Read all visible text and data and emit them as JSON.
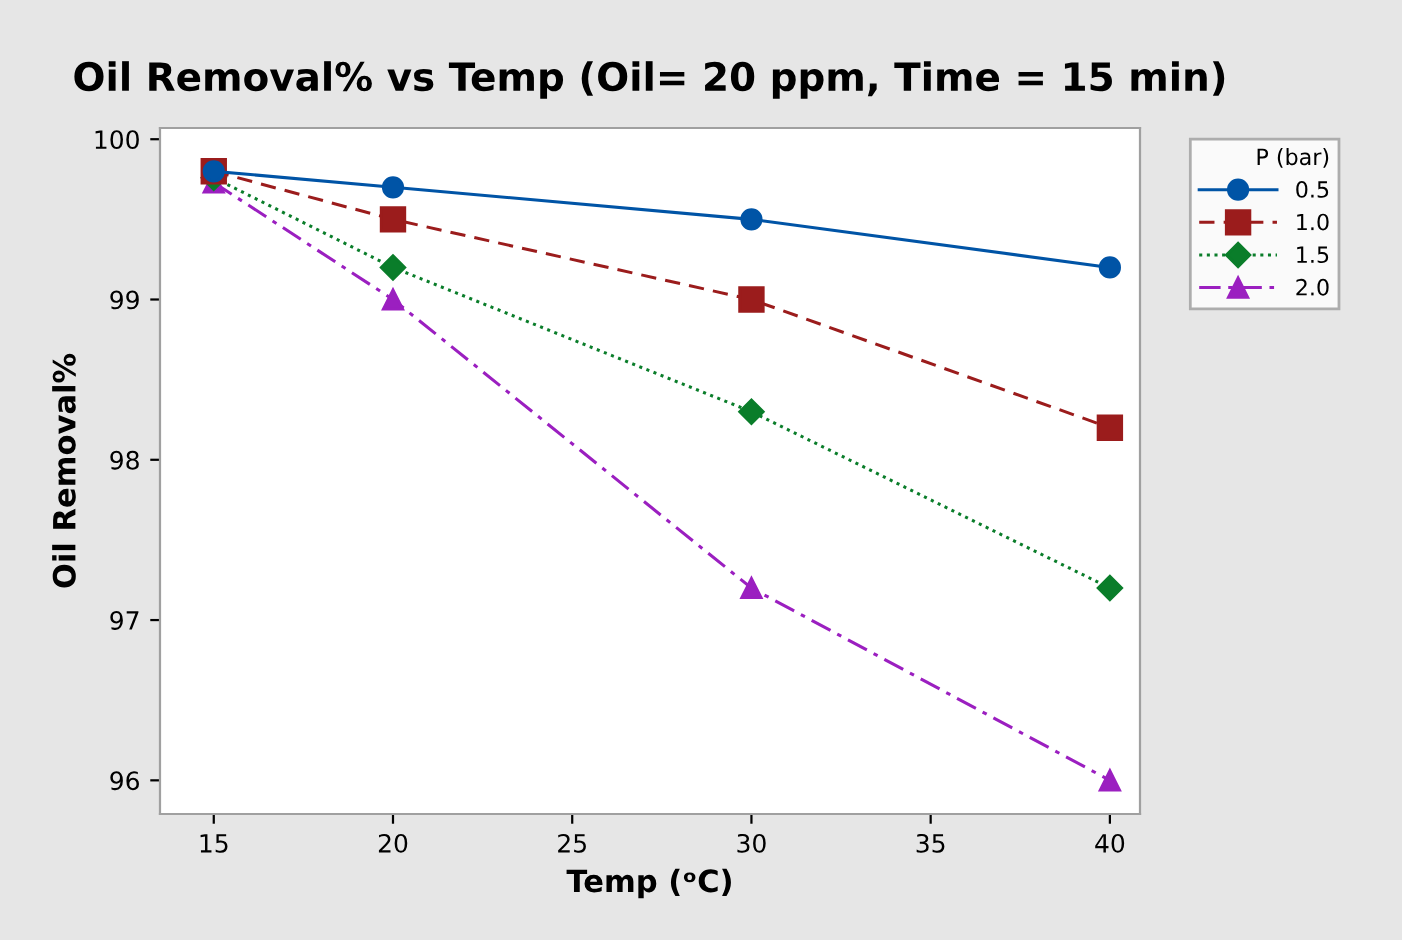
{
  "chart_data": {
    "type": "line",
    "title": "Oil Removal% vs Temp (Oil= 20 ppm, Time = 15 min)",
    "xlabel": "Temp (ᵒC)",
    "ylabel": "Oil Removal%",
    "legend_title": "P (bar)",
    "x": [
      15,
      20,
      30,
      40
    ],
    "series": [
      {
        "name": "0.5",
        "color": "#0054a6",
        "values": [
          99.8,
          99.7,
          99.5,
          99.2
        ],
        "marker": "circle",
        "line_style": "solid"
      },
      {
        "name": "1.0",
        "color": "#9b1c1c",
        "values": [
          99.8,
          99.5,
          99.0,
          98.2
        ],
        "marker": "square",
        "line_style": "dashed"
      },
      {
        "name": "1.5",
        "color": "#0a7d2a",
        "values": [
          99.76,
          99.2,
          98.3,
          97.2
        ],
        "marker": "diamond",
        "line_style": "dotted"
      },
      {
        "name": "2.0",
        "color": "#9b1fc0",
        "values": [
          99.73,
          99.0,
          97.2,
          96.0
        ],
        "marker": "triangle",
        "line_style": "dashdot"
      }
    ],
    "xlim": [
      13.5,
      40.84
    ],
    "ylim": [
      95.79,
      100.07
    ],
    "xticks": [
      15,
      20,
      25,
      30,
      35,
      40
    ],
    "yticks": [
      96,
      97,
      98,
      99,
      100
    ],
    "grid": false,
    "legend": "top right"
  }
}
